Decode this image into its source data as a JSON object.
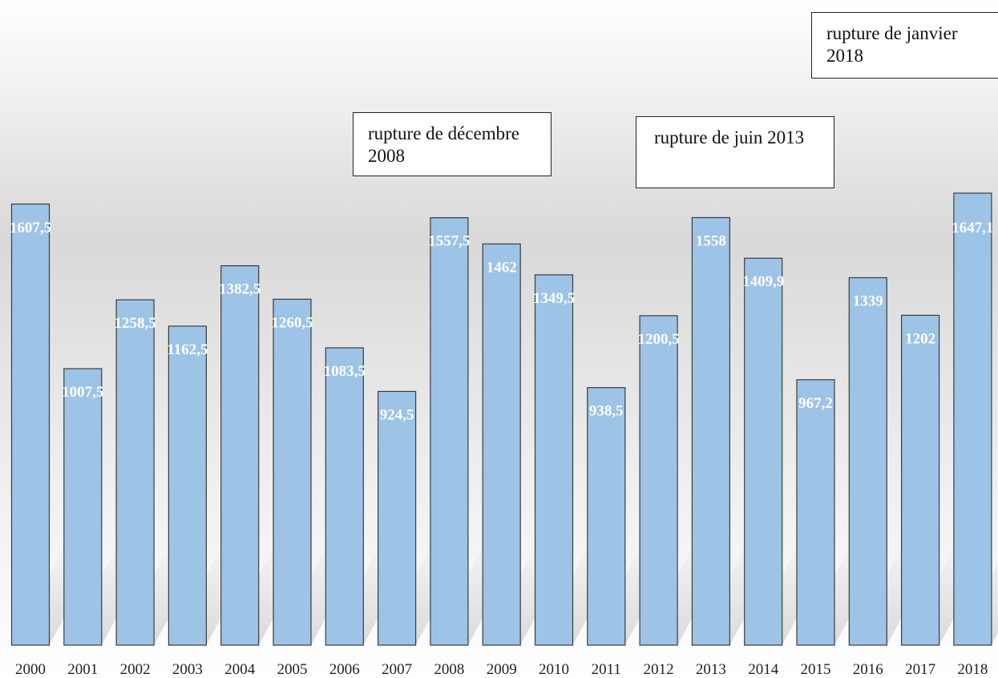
{
  "chart_data": {
    "type": "bar",
    "categories": [
      "2000",
      "2001",
      "2002",
      "2003",
      "2004",
      "2005",
      "2006",
      "2007",
      "2008",
      "2009",
      "2010",
      "2011",
      "2012",
      "2013",
      "2014",
      "2015",
      "2016",
      "2017",
      "2018"
    ],
    "values": [
      1607.5,
      1007.5,
      1258.5,
      1162.5,
      1382.5,
      1260.5,
      1083.5,
      924.5,
      1557.5,
      1462,
      1349.5,
      938.5,
      1200.5,
      1558,
      1409.9,
      967.2,
      1339,
      1202,
      1647.1
    ],
    "value_labels": [
      "1607,5",
      "1007,5",
      "1258,5",
      "1162,5",
      "1382,5",
      "1260,5",
      "1083,5",
      "924,5",
      "1557,5",
      "1462",
      "1349,5",
      "938,5",
      "1200,5",
      "1558",
      "1409,9",
      "967,2",
      "1339",
      "1202",
      "1647,1"
    ],
    "ylim": [
      0,
      1647.1
    ],
    "bar_color": "#9dc3e6",
    "bar_outline_color": "#3c3c3c",
    "label_color": "#ffffff",
    "grid": false,
    "annotations": [
      "rupture de décembre 2008",
      "rupture de juin 2013",
      "rupture de janvier 2018"
    ]
  }
}
